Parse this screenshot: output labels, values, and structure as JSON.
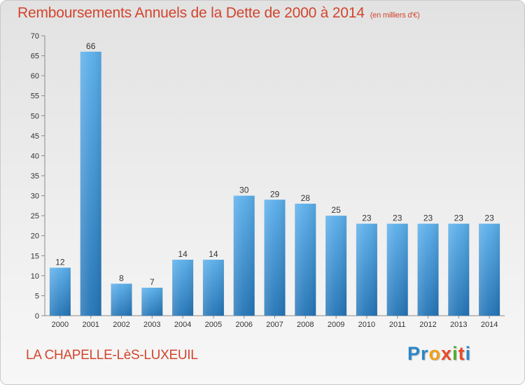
{
  "page": {
    "title": "Remboursements Annuels de la Dette de 2000 à 2014",
    "unit": "(en milliers d'€)",
    "commune": "LA CHAPELLE-LèS-LUXEUIL",
    "logo": [
      "P",
      "r",
      "o",
      "x",
      "i",
      "t",
      "i"
    ],
    "logo_colors": [
      "#2a86c8",
      "#2a86c8",
      "#f0a018",
      "#e84a2a",
      "#48b030",
      "#e84a2a",
      "#2a86c8"
    ]
  },
  "chart_data": {
    "type": "bar",
    "title": "Remboursements Annuels de la Dette de 2000 à 2014",
    "ylabel": "en milliers d'€",
    "xlabel": "",
    "categories": [
      "2000",
      "2001",
      "2002",
      "2003",
      "2004",
      "2005",
      "2006",
      "2007",
      "2008",
      "2009",
      "2010",
      "2011",
      "2012",
      "2013",
      "2014"
    ],
    "values": [
      12,
      66,
      8,
      7,
      14,
      14,
      30,
      29,
      28,
      25,
      23,
      23,
      23,
      23,
      23
    ],
    "ylim": [
      0,
      70
    ],
    "yticks": [
      0,
      5,
      10,
      15,
      20,
      25,
      30,
      35,
      40,
      45,
      50,
      55,
      60,
      65,
      70
    ],
    "grid": false,
    "bar_color": "#3f95dc"
  }
}
